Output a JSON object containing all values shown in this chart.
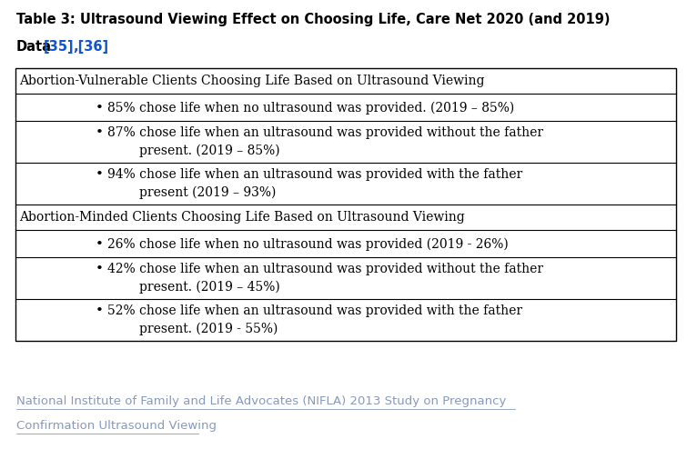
{
  "background_color": "#ffffff",
  "title_text": "Table 3: Ultrasound Viewing Effect on Choosing Life, Care Net 2020 (and 2019)",
  "title_fontsize": 10.5,
  "subtitle_fontsize": 10.5,
  "subtitle_link_color": "#1155CC",
  "table_border_color": "#000000",
  "section1_header": "Abortion-Vulnerable Clients Choosing Life Based on Ultrasound Viewing",
  "section2_header": "Abortion-Minded Clients Choosing Life Based on Ultrasound Viewing",
  "section_header_fontsize": 10.0,
  "bullet_fontsize": 10.0,
  "bullet1": "85% chose life when no ultrasound was provided. (2019 – 85%)",
  "bullet2": "87% chose life when an ultrasound was provided without the father\n        present. (2019 – 85%)",
  "bullet3": "94% chose life when an ultrasound was provided with the father\n        present (2019 – 93%)",
  "bullet4": "26% chose life when no ultrasound was provided (2019 - 26%)",
  "bullet5": "42% chose life when an ultrasound was provided without the father\n        present. (2019 – 45%)",
  "bullet6": "52% chose life when an ultrasound was provided with the father\n        present. (2019 - 55%)",
  "footer_line1": "National Institute of Family and Life Advocates (NIFLA) 2013 Study on Pregnancy",
  "footer_line2": "Confirmation Ultrasound Viewing",
  "footer_link_color": "#8899BB",
  "footer_fontsize": 9.5,
  "fig_width": 7.66,
  "fig_height": 5.16,
  "dpi": 100
}
